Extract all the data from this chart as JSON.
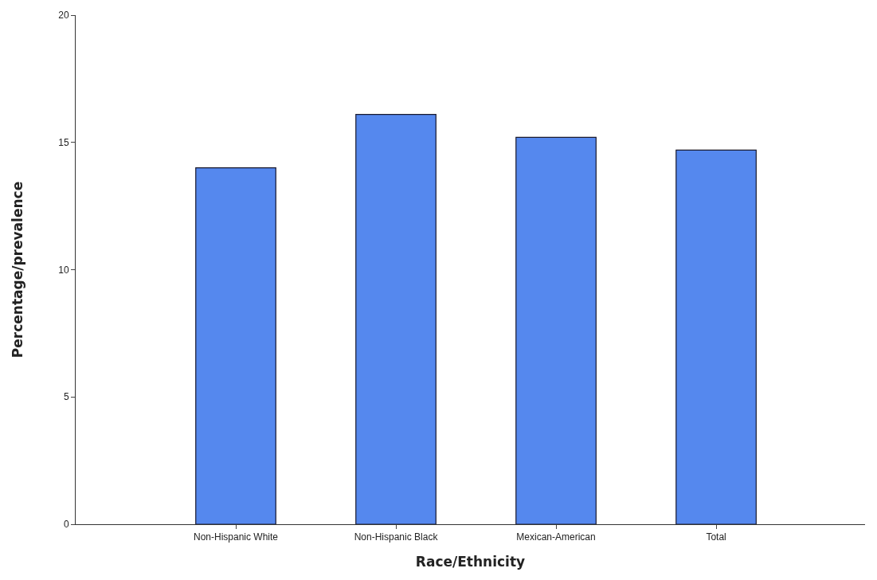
{
  "chart_data": {
    "type": "bar",
    "xlabel": "Race/Ethnicity",
    "ylabel": "Percentage/prevalence",
    "categories": [
      "Non-Hispanic White",
      "Non-Hispanic Black",
      "Mexican-American",
      "Total"
    ],
    "values": [
      14.0,
      16.1,
      15.2,
      14.7
    ],
    "color": "#5588ee",
    "ylim": [
      0,
      20
    ],
    "yticks": [
      0,
      5,
      10,
      15,
      20
    ]
  }
}
